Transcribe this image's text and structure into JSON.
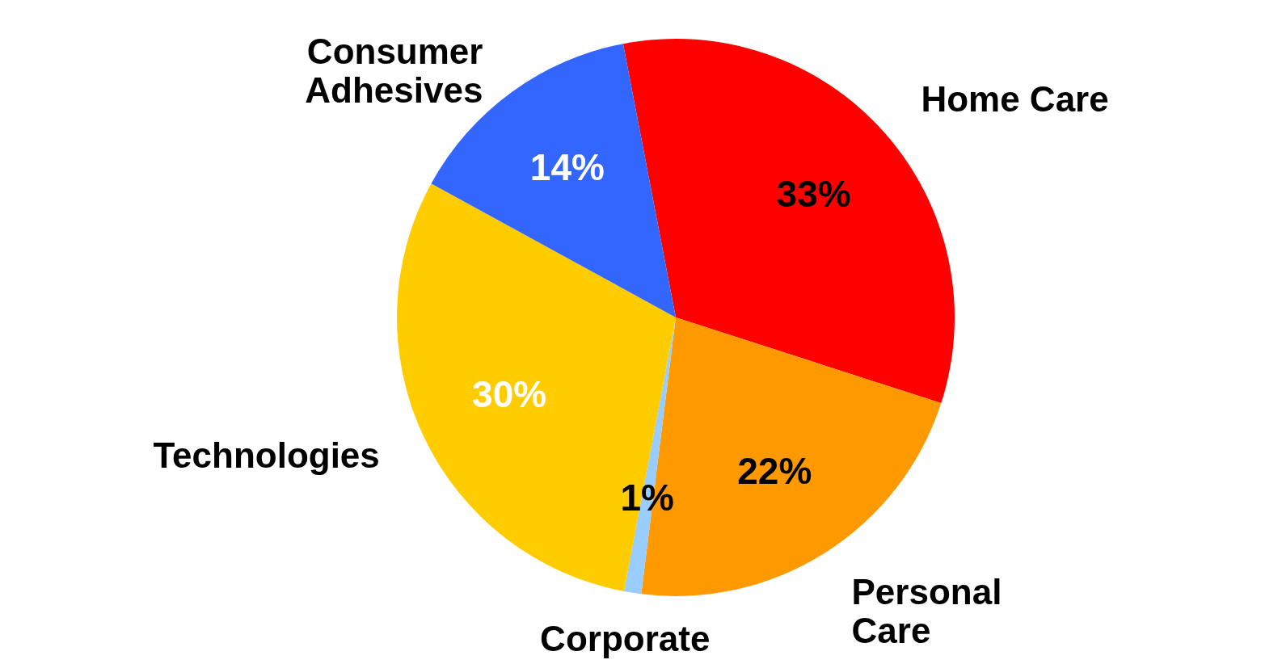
{
  "chart_data": {
    "type": "pie",
    "categories": [
      "Home Care",
      "Personal Care",
      "Corporate",
      "Technologies",
      "Consumer Adhesives"
    ],
    "values": [
      33,
      22,
      1,
      30,
      14
    ],
    "colors": [
      "#ff0000",
      "#ff9900",
      "#99ccff",
      "#ffcc00",
      "#3366ff"
    ],
    "value_labels": [
      "33%",
      "22%",
      "1%",
      "30%",
      "14%"
    ]
  }
}
